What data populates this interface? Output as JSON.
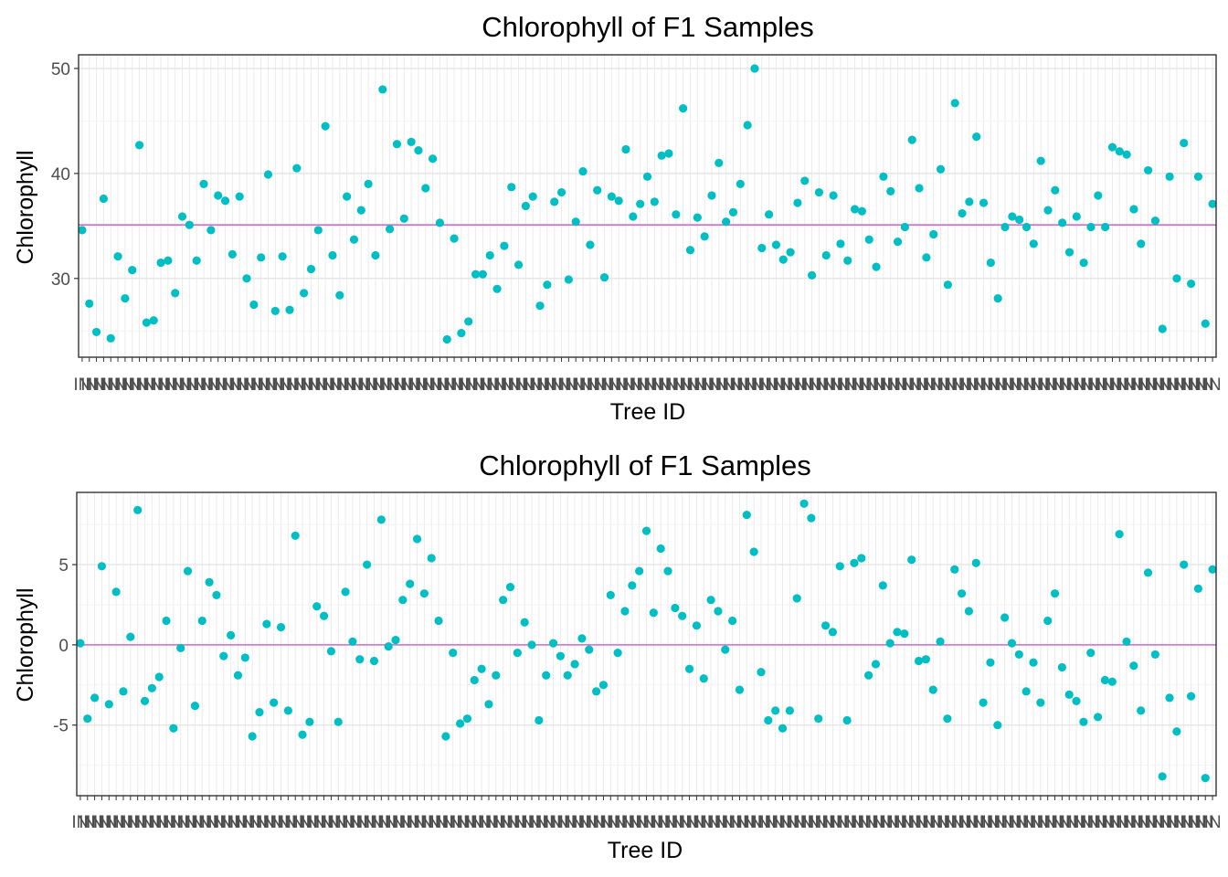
{
  "chart_data": [
    {
      "type": "scatter",
      "title": "Chlorophyll of F1 Samples",
      "xlabel": "Tree ID",
      "ylabel": "Chlorophyll",
      "ylim": [
        22.5,
        51.3
      ],
      "yticks": [
        30,
        40,
        50
      ],
      "grid": true,
      "legend": "none",
      "reference_line": 35.1,
      "colors": {
        "points": "#00bfc4",
        "reference_line": "#d36ad6"
      },
      "x_tick_labels_note": "IN",
      "series": [
        {
          "values": [
            34.6,
            27.6,
            24.9,
            37.6,
            24.3,
            32.1,
            28.1,
            30.8,
            42.7,
            25.8,
            26,
            31.5,
            31.7,
            28.6,
            35.9,
            35.1,
            31.7,
            39,
            34.6,
            37.9,
            37.4,
            32.3,
            37.8,
            30,
            27.5,
            32,
            39.9,
            26.9,
            32.1,
            27,
            40.5,
            28.6,
            30.9,
            34.6,
            44.5,
            32.2,
            28.4,
            37.8,
            33.7,
            36.5,
            39,
            32.2,
            48,
            34.7,
            42.8,
            35.7,
            43,
            42.2,
            38.6,
            41.4,
            35.3,
            24.2,
            33.8,
            24.8,
            25.9,
            30.4,
            30.4,
            32.2,
            29,
            33.1,
            38.7,
            31.3,
            36.9,
            37.8,
            27.4,
            29.4,
            37.3,
            38.2,
            29.9,
            35.4,
            40.2,
            33.2,
            38.4,
            30.1,
            37.8,
            37.4,
            42.3,
            35.9,
            37.1,
            39.7,
            37.3,
            41.7,
            41.9,
            36.1,
            46.2,
            32.7,
            35.8,
            34,
            37.9,
            41,
            35.4,
            36.3,
            39,
            44.6,
            50,
            32.9,
            36.1,
            33.2,
            31.8,
            32.5,
            37.2,
            39.3,
            30.3,
            38.2,
            32.2,
            37.9,
            33.3,
            31.7,
            36.6,
            36.4,
            33.7,
            31.1,
            39.7,
            38.3,
            33.5,
            34.9,
            43.2,
            38.6,
            32,
            34.2,
            40.4,
            29.4,
            46.7,
            36.2,
            37.3,
            43.5,
            37.2,
            31.5,
            28.1,
            34.9,
            35.9,
            35.6,
            34.9,
            33.3,
            41.2,
            36.5,
            38.4,
            35.3,
            32.5,
            35.9,
            31.5,
            34.9,
            37.9,
            34.9,
            42.5,
            42.1,
            41.8,
            36.6,
            33.3,
            40.3,
            35.5,
            25.2,
            39.7,
            30,
            42.9,
            29.5,
            39.7,
            25.7,
            37.1
          ]
        }
      ]
    },
    {
      "type": "scatter",
      "title": "Chlorophyll of F1 Samples",
      "xlabel": "Tree ID",
      "ylabel": "Chlorophyll",
      "ylim": [
        -9.4,
        9.5
      ],
      "yticks": [
        -5,
        0,
        5
      ],
      "grid": true,
      "legend": "none",
      "reference_line": 0,
      "colors": {
        "points": "#00bfc4",
        "reference_line": "#d36ad6"
      },
      "x_tick_labels_note": "IN",
      "series": [
        {
          "values": [
            0.1,
            -4.6,
            -3.3,
            4.9,
            -3.7,
            3.3,
            -2.9,
            0.5,
            8.4,
            -3.5,
            -2.7,
            -2,
            1.5,
            -5.2,
            -0.2,
            4.6,
            -3.8,
            1.5,
            3.9,
            3.1,
            -0.7,
            0.6,
            -1.9,
            -0.8,
            -5.7,
            -4.2,
            1.3,
            -3.6,
            1.1,
            -4.1,
            6.8,
            -5.6,
            -4.8,
            2.4,
            1.8,
            -0.4,
            -4.8,
            3.3,
            0.2,
            -0.9,
            5,
            -1,
            7.8,
            -0.1,
            0.3,
            2.8,
            3.8,
            6.6,
            3.2,
            5.4,
            1.5,
            -5.7,
            -0.5,
            -4.9,
            -4.6,
            -2.2,
            -1.5,
            -3.7,
            -1.9,
            2.8,
            3.6,
            -0.5,
            1.4,
            0,
            -4.7,
            -1.9,
            0.1,
            -0.7,
            -1.9,
            -1.2,
            0.4,
            -0.3,
            -2.9,
            -2.5,
            3.1,
            -0.5,
            2.1,
            3.7,
            4.6,
            7.1,
            2,
            6,
            4.6,
            2.3,
            1.8,
            -1.5,
            1.2,
            -2.1,
            2.8,
            2.1,
            -0.3,
            1.5,
            -2.8,
            8.1,
            5.8,
            -1.7,
            -4.7,
            -4.1,
            -5.2,
            -4.1,
            2.9,
            8.8,
            7.9,
            -4.6,
            1.2,
            0.8,
            4.9,
            -4.7,
            5.1,
            5.4,
            -1.9,
            -1.2,
            3.7,
            0.1,
            0.8,
            0.7,
            5.3,
            -1,
            -0.9,
            -2.8,
            0.2,
            -4.6,
            4.7,
            3.2,
            2.1,
            5.1,
            -3.6,
            -1.1,
            -5,
            1.7,
            0.1,
            -0.6,
            -2.9,
            -1.1,
            -3.6,
            1.5,
            3.2,
            -1.4,
            -3.1,
            -3.5,
            -4.8,
            -0.5,
            -4.5,
            -2.2,
            -2.3,
            6.9,
            0.2,
            -1.3,
            -4.1,
            4.5,
            -0.6,
            -8.2,
            -3.3,
            -5.4,
            5,
            -3.2,
            3.5,
            -8.3,
            4.7
          ]
        }
      ]
    }
  ]
}
